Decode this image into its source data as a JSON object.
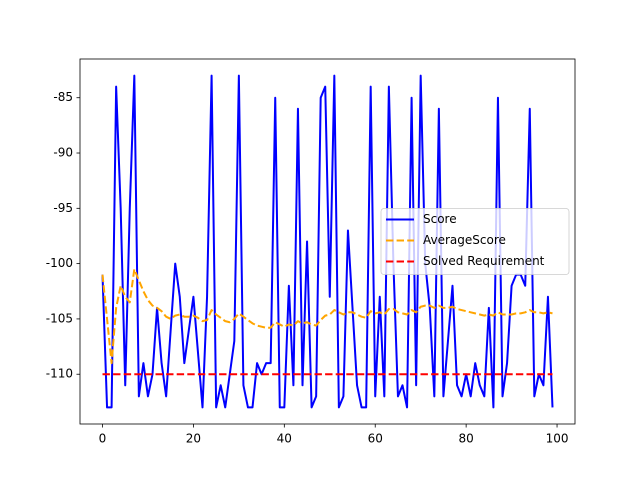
{
  "chart_data": {
    "type": "line",
    "x": [
      0,
      1,
      2,
      3,
      4,
      5,
      6,
      7,
      8,
      9,
      10,
      11,
      12,
      13,
      14,
      15,
      16,
      17,
      18,
      19,
      20,
      21,
      22,
      23,
      24,
      25,
      26,
      27,
      28,
      29,
      30,
      31,
      32,
      33,
      34,
      35,
      36,
      37,
      38,
      39,
      40,
      41,
      42,
      43,
      44,
      45,
      46,
      47,
      48,
      49,
      50,
      51,
      52,
      53,
      54,
      55,
      56,
      57,
      58,
      59,
      60,
      61,
      62,
      63,
      64,
      65,
      66,
      67,
      68,
      69,
      70,
      71,
      72,
      73,
      74,
      75,
      76,
      77,
      78,
      79,
      80,
      81,
      82,
      83,
      84,
      85,
      86,
      87,
      88,
      89,
      90,
      91,
      92,
      93,
      94,
      95,
      96,
      97,
      98,
      99
    ],
    "series": [
      {
        "name": "Score",
        "color": "#0000ff",
        "linestyle": "solid",
        "values": [
          -101,
          -113,
          -113,
          -84,
          -95,
          -111,
          -95,
          -83,
          -112,
          -109,
          -112,
          -110,
          -104,
          -109,
          -112,
          -106,
          -100,
          -103,
          -109,
          -106,
          -103,
          -108,
          -113,
          -103,
          -83,
          -113,
          -111,
          -113,
          -110,
          -107,
          -83,
          -111,
          -113,
          -113,
          -109,
          -110,
          -109,
          -109,
          -85,
          -113,
          -113,
          -102,
          -111,
          -86,
          -111,
          -98,
          -113,
          -112,
          -85,
          -84,
          -103,
          -83,
          -113,
          -112,
          -97,
          -104,
          -111,
          -113,
          -113,
          -84,
          -112,
          -103,
          -112,
          -84,
          -100,
          -112,
          -111,
          -113,
          -85,
          -111,
          -83,
          -100,
          -104,
          -112,
          -86,
          -112,
          -107,
          -102,
          -111,
          -112,
          -110,
          -112,
          -109,
          -111,
          -112,
          -104,
          -113,
          -85,
          -112,
          -109,
          -102,
          -101,
          -101,
          -102,
          -86,
          -112,
          -110,
          -111,
          -103,
          -113
        ]
      },
      {
        "name": "AverageScore",
        "color": "#ffa500",
        "linestyle": "dashed",
        "values": [
          -101,
          -105,
          -109,
          -104,
          -102,
          -103,
          -103.5,
          -100.5,
          -101.5,
          -102.5,
          -103.3,
          -103.8,
          -104,
          -104.3,
          -104.8,
          -105,
          -104.7,
          -104.6,
          -104.8,
          -104.8,
          -104.7,
          -104.9,
          -105.2,
          -105.1,
          -104.2,
          -104.6,
          -104.9,
          -105.2,
          -105.3,
          -105,
          -104.5,
          -104.8,
          -105.1,
          -105.4,
          -105.6,
          -105.7,
          -105.8,
          -105.8,
          -105.3,
          -105.5,
          -105.7,
          -105.5,
          -105.6,
          -105.2,
          -105.4,
          -105.3,
          -105.5,
          -105.6,
          -105.1,
          -104.7,
          -104.6,
          -104.2,
          -104.4,
          -104.6,
          -104.4,
          -104.4,
          -104.6,
          -104.8,
          -104.9,
          -104.3,
          -104.5,
          -104.4,
          -104.6,
          -104.1,
          -104.1,
          -104.4,
          -104.5,
          -104.6,
          -104.2,
          -104.4,
          -103.9,
          -103.8,
          -103.8,
          -104,
          -103.8,
          -104,
          -104,
          -103.9,
          -104.1,
          -104.2,
          -104.3,
          -104.4,
          -104.5,
          -104.6,
          -104.7,
          -104.6,
          -104.7,
          -104.4,
          -104.6,
          -104.6,
          -104.6,
          -104.5,
          -104.5,
          -104.4,
          -104.2,
          -104.4,
          -104.4,
          -104.5,
          -104.4,
          -104.5
        ]
      },
      {
        "name": "Solved Requirement",
        "color": "#ff0000",
        "linestyle": "dashed",
        "values": [
          -110,
          -110,
          -110,
          -110,
          -110,
          -110,
          -110,
          -110,
          -110,
          -110,
          -110,
          -110,
          -110,
          -110,
          -110,
          -110,
          -110,
          -110,
          -110,
          -110,
          -110,
          -110,
          -110,
          -110,
          -110,
          -110,
          -110,
          -110,
          -110,
          -110,
          -110,
          -110,
          -110,
          -110,
          -110,
          -110,
          -110,
          -110,
          -110,
          -110,
          -110,
          -110,
          -110,
          -110,
          -110,
          -110,
          -110,
          -110,
          -110,
          -110,
          -110,
          -110,
          -110,
          -110,
          -110,
          -110,
          -110,
          -110,
          -110,
          -110,
          -110,
          -110,
          -110,
          -110,
          -110,
          -110,
          -110,
          -110,
          -110,
          -110,
          -110,
          -110,
          -110,
          -110,
          -110,
          -110,
          -110,
          -110,
          -110,
          -110,
          -110,
          -110,
          -110,
          -110,
          -110,
          -110,
          -110,
          -110,
          -110,
          -110,
          -110,
          -110,
          -110,
          -110,
          -110,
          -110,
          -110,
          -110,
          -110,
          -110
        ]
      }
    ],
    "xlim": [
      -4.95,
      103.95
    ],
    "xticks": [
      0,
      20,
      40,
      60,
      80,
      100
    ],
    "ylim": [
      -114.5,
      -81.5
    ],
    "yticks": [
      -110,
      -105,
      -100,
      -95,
      -90,
      -85
    ],
    "legend": "center right"
  }
}
